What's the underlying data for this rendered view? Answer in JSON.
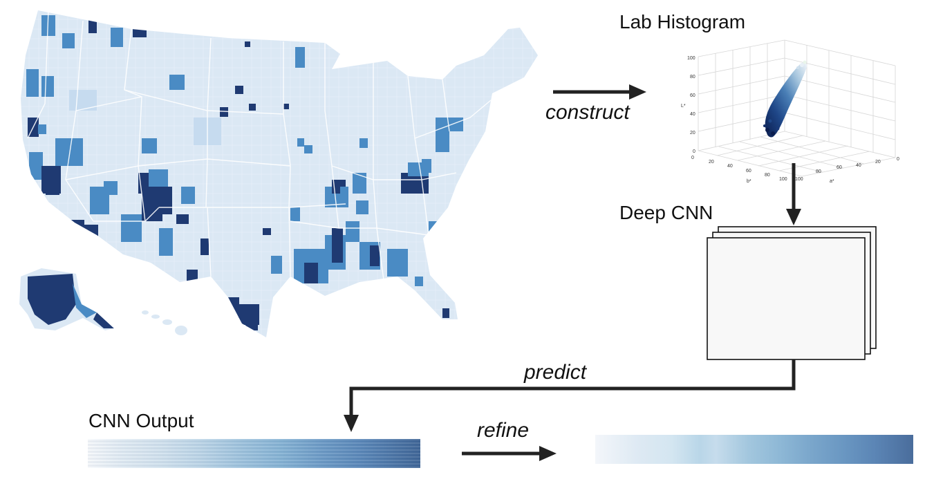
{
  "labels": {
    "lab_histogram": "Lab Histogram",
    "deep_cnn": "Deep CNN",
    "cnn_output": "CNN Output",
    "construct": "construct",
    "predict": "predict",
    "refine": "refine"
  },
  "histogram": {
    "l_axis_label": "L*",
    "a_axis_label": "a*",
    "b_axis_label": "b*",
    "l_ticks": [
      "0",
      "20",
      "40",
      "60",
      "80",
      "100"
    ],
    "b_ticks": [
      "0",
      "20",
      "40",
      "60",
      "80",
      "100"
    ],
    "a_ticks": [
      "100",
      "80",
      "60",
      "40",
      "20",
      "0"
    ]
  },
  "colors": {
    "map_base": "#dbe8f4",
    "map_light": "#c6dbef",
    "map_mid": "#4a8bc4",
    "map_dark": "#1f3a72",
    "arrow": "#222222",
    "cnn_layer_fill": "#f8f8f8"
  }
}
